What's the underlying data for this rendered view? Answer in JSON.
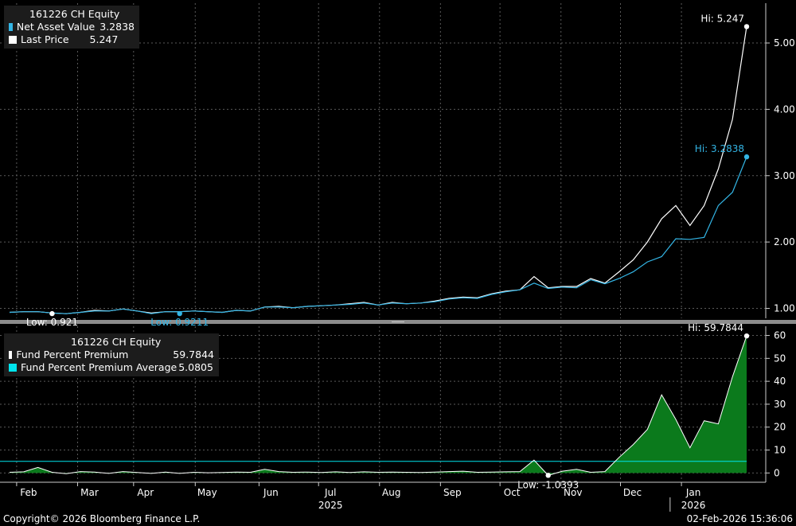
{
  "chart_data": [
    {
      "type": "line",
      "legend": {
        "title": "161226 CH Equity",
        "items": [
          {
            "label": "Net Asset Value",
            "value": "3.2838",
            "color": "#33b5e5"
          },
          {
            "label": "Last Price",
            "value": "5.247",
            "color": "#ffffff"
          }
        ]
      },
      "ylim": [
        0.85,
        5.6
      ],
      "yticks": [
        1.0,
        2.0,
        3.0,
        4.0,
        5.0
      ],
      "ytick_labels": [
        "1.00",
        "2.00",
        "3.00",
        "4.00",
        "5.00"
      ],
      "series": [
        {
          "name": "Last Price",
          "color": "#ffffff",
          "values": [
            0.94,
            0.95,
            0.95,
            0.93,
            0.92,
            0.94,
            0.97,
            0.96,
            0.99,
            0.96,
            0.93,
            0.95,
            0.95,
            0.96,
            0.95,
            0.94,
            0.97,
            0.96,
            1.02,
            1.03,
            1.01,
            1.03,
            1.04,
            1.05,
            1.07,
            1.09,
            1.05,
            1.09,
            1.07,
            1.08,
            1.11,
            1.15,
            1.17,
            1.16,
            1.22,
            1.26,
            1.28,
            1.48,
            1.31,
            1.33,
            1.33,
            1.45,
            1.38,
            1.55,
            1.73,
            2.0,
            2.35,
            2.55,
            2.25,
            2.55,
            3.1,
            3.85,
            5.247
          ]
        },
        {
          "name": "Net Asset Value",
          "color": "#33b5e5",
          "values": [
            0.94,
            0.95,
            0.95,
            0.93,
            0.92,
            0.94,
            0.96,
            0.96,
            0.99,
            0.96,
            0.92,
            0.95,
            0.95,
            0.96,
            0.95,
            0.94,
            0.97,
            0.96,
            1.02,
            1.02,
            1.01,
            1.03,
            1.04,
            1.05,
            1.06,
            1.08,
            1.05,
            1.08,
            1.07,
            1.08,
            1.1,
            1.14,
            1.16,
            1.15,
            1.21,
            1.25,
            1.28,
            1.38,
            1.3,
            1.32,
            1.31,
            1.43,
            1.37,
            1.45,
            1.55,
            1.7,
            1.78,
            2.05,
            2.04,
            2.07,
            2.55,
            2.75,
            3.2838
          ]
        }
      ],
      "annotations": [
        {
          "text": "Hi: 5.247",
          "series": "Last Price",
          "index": 52,
          "value": 5.247
        },
        {
          "text": "Hi: 3.2838",
          "series": "Net Asset Value",
          "index": 52,
          "value": 3.2838
        },
        {
          "text": "Low: 0.921",
          "series": "Last Price",
          "index": 3,
          "value": 0.921
        },
        {
          "text": "Low: 0.9211",
          "series": "Net Asset Value",
          "index": 12,
          "value": 0.9211
        }
      ]
    },
    {
      "type": "area",
      "legend": {
        "title": "161226 CH Equity",
        "items": [
          {
            "label": "Fund Percent Premium",
            "value": "59.7844",
            "color": "#ffffff"
          },
          {
            "label": "Fund Percent Premium Average",
            "value": "5.0805",
            "color": "#00e5ee"
          }
        ]
      },
      "ylim": [
        -3,
        64
      ],
      "yticks": [
        0,
        10,
        20,
        30,
        40,
        50,
        60
      ],
      "ytick_labels": [
        "0",
        "10",
        "20",
        "30",
        "40",
        "50",
        "60"
      ],
      "average": 5.0805,
      "fill_color": "#0b7a1c",
      "series": [
        {
          "name": "Fund Percent Premium",
          "color": "#ffffff",
          "values": [
            0.3,
            0.5,
            2.4,
            0.3,
            -0.3,
            0.6,
            0.4,
            -0.2,
            0.6,
            0.2,
            -0.2,
            0.4,
            -0.2,
            0.3,
            0.1,
            0.2,
            0.4,
            0.3,
            1.6,
            0.6,
            0.3,
            0.4,
            0.2,
            0.5,
            0.2,
            0.5,
            0.3,
            0.4,
            0.3,
            0.2,
            0.4,
            0.6,
            0.8,
            0.3,
            0.4,
            0.5,
            0.6,
            5.6,
            -1.0393,
            0.8,
            1.6,
            0.3,
            0.6,
            6.8,
            12.4,
            19.0,
            34.1,
            23.4,
            11.0,
            22.8,
            21.4,
            42.0,
            59.7844
          ]
        }
      ],
      "annotations": [
        {
          "text": "Hi: 59.7844",
          "index": 52,
          "value": 59.7844
        },
        {
          "text": "Low: -1.0393",
          "index": 38,
          "value": -1.0393
        }
      ]
    }
  ],
  "x_axis": {
    "months": [
      "Feb",
      "Mar",
      "Apr",
      "May",
      "Jun",
      "Jul",
      "Aug",
      "Sep",
      "Oct",
      "Nov",
      "Dec",
      "Jan"
    ],
    "month_positions": [
      0.5,
      4.8,
      8.75,
      13.1,
      17.6,
      21.8,
      26.1,
      30.4,
      34.6,
      38.9,
      43.1,
      47.4
    ],
    "years": [
      "2025",
      "2026"
    ],
    "year_positions": [
      21.8,
      47.4
    ]
  },
  "footer": {
    "copyright": "Copyright© 2026 Bloomberg Finance L.P.",
    "timestamp": "02-Feb-2026 15:36:06"
  }
}
